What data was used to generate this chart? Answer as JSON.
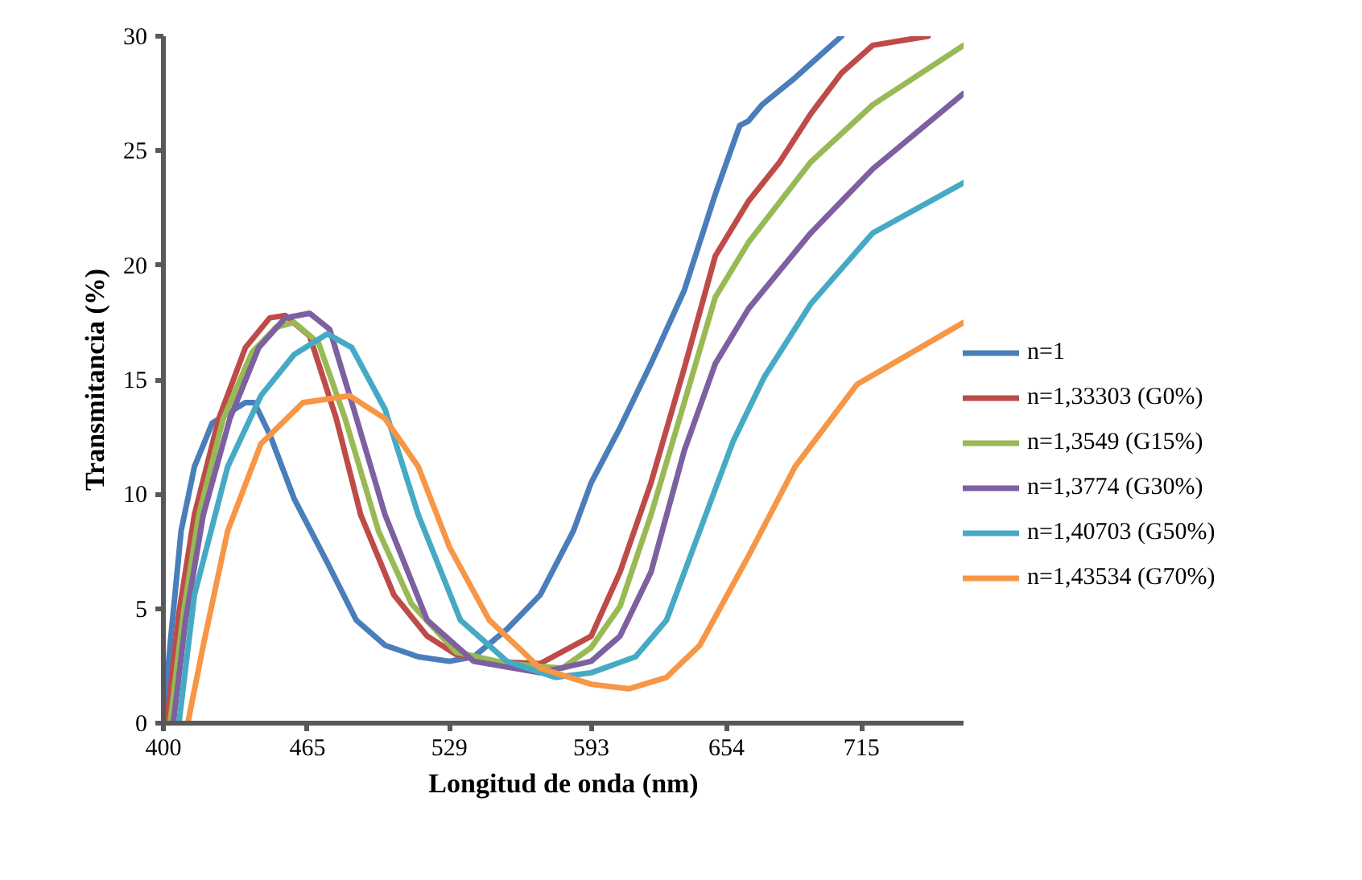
{
  "chart_data": {
    "type": "line",
    "xlabel": "Longitud de onda (nm)",
    "ylabel": "Transmitancia (%)",
    "xlim": [
      400,
      761
    ],
    "xticks": [
      400,
      465,
      529,
      593,
      654,
      715
    ],
    "ylim": [
      0,
      30
    ],
    "yticks": [
      0,
      5,
      10,
      15,
      20,
      25,
      30
    ],
    "grid": false,
    "legend": "right",
    "marker": "none",
    "line_style": "solid",
    "series": [
      {
        "name": "n=1",
        "color": "#4a7ebb",
        "x": [
          400,
          403,
          408,
          414,
          422,
          437,
          441,
          448,
          459,
          474,
          487,
          500,
          515,
          529,
          540,
          555,
          570,
          585,
          593,
          606,
          620,
          635,
          649,
          660,
          664,
          670,
          684,
          699,
          706
        ],
        "values": [
          0,
          3.4,
          8.4,
          11.2,
          13.1,
          14.0,
          14.0,
          12.6,
          9.8,
          7.0,
          4.5,
          3.4,
          2.9,
          2.7,
          2.9,
          4.1,
          5.6,
          8.4,
          10.5,
          12.9,
          15.7,
          18.9,
          23.1,
          26.1,
          26.3,
          27.0,
          28.1,
          29.4,
          30
        ]
      },
      {
        "name": "n=1,33303 (G0%)",
        "color": "#be4b48",
        "x": [
          401.5,
          407,
          414,
          425,
          437,
          448,
          455,
          466,
          478,
          489,
          504,
          519,
          532,
          547,
          570,
          593,
          606,
          620,
          635,
          649,
          664,
          678,
          692,
          706,
          720,
          745
        ],
        "values": [
          0,
          4.8,
          9.1,
          13.3,
          16.4,
          17.7,
          17.8,
          16.9,
          13.3,
          9.1,
          5.6,
          3.8,
          3.0,
          2.7,
          2.6,
          3.8,
          6.6,
          10.5,
          15.5,
          20.4,
          22.8,
          24.5,
          26.6,
          28.4,
          29.6,
          30
        ]
      },
      {
        "name": "n=1,3549 (G15%)",
        "color": "#98b954",
        "x": [
          403,
          409,
          416,
          427,
          440,
          451,
          459,
          470,
          482,
          497,
          512,
          532,
          555,
          580,
          593,
          606,
          620,
          635,
          649,
          664,
          692,
          720,
          761
        ],
        "values": [
          0,
          4.8,
          9.1,
          13.3,
          16.2,
          17.3,
          17.5,
          16.6,
          13.3,
          8.4,
          5.2,
          3.1,
          2.6,
          2.4,
          3.3,
          5.1,
          9.1,
          14.0,
          18.6,
          21.0,
          24.5,
          27.0,
          29.6
        ]
      },
      {
        "name": "n=1,3774 (G30%)",
        "color": "#7d60a0",
        "x": [
          404.5,
          410,
          418,
          430,
          443,
          455,
          466,
          475,
          485,
          500,
          519,
          540,
          570,
          593,
          606,
          620,
          635,
          649,
          664,
          692,
          720,
          761
        ],
        "values": [
          0,
          4.5,
          9.1,
          13.3,
          16.4,
          17.7,
          17.9,
          17.2,
          14.0,
          9.1,
          4.5,
          2.7,
          2.2,
          2.7,
          3.8,
          6.6,
          11.9,
          15.7,
          18.1,
          21.4,
          24.2,
          27.5
        ]
      },
      {
        "name": "n=1,40703 (G50%)",
        "color": "#46aac5",
        "x": [
          407,
          414,
          429,
          444,
          459,
          474,
          485,
          500,
          515,
          534,
          555,
          577,
          593,
          613,
          627,
          642,
          657,
          671,
          692,
          720,
          761
        ],
        "values": [
          0,
          5.6,
          11.2,
          14.3,
          16.1,
          17.0,
          16.4,
          13.7,
          9.1,
          4.5,
          2.7,
          2.0,
          2.2,
          2.9,
          4.5,
          8.4,
          12.3,
          15.1,
          18.3,
          21.4,
          23.6
        ]
      },
      {
        "name": "n=1,43534 (G70%)",
        "color": "#f79646",
        "x": [
          411,
          418,
          429,
          444,
          463,
          484,
          500,
          515,
          529,
          547,
          570,
          593,
          610,
          627,
          642,
          664,
          685,
          713,
          761
        ],
        "values": [
          0,
          3.4,
          8.4,
          12.2,
          14.0,
          14.3,
          13.3,
          11.2,
          7.7,
          4.5,
          2.4,
          1.7,
          1.5,
          2.0,
          3.4,
          7.3,
          11.2,
          14.8,
          17.5
        ]
      }
    ]
  }
}
